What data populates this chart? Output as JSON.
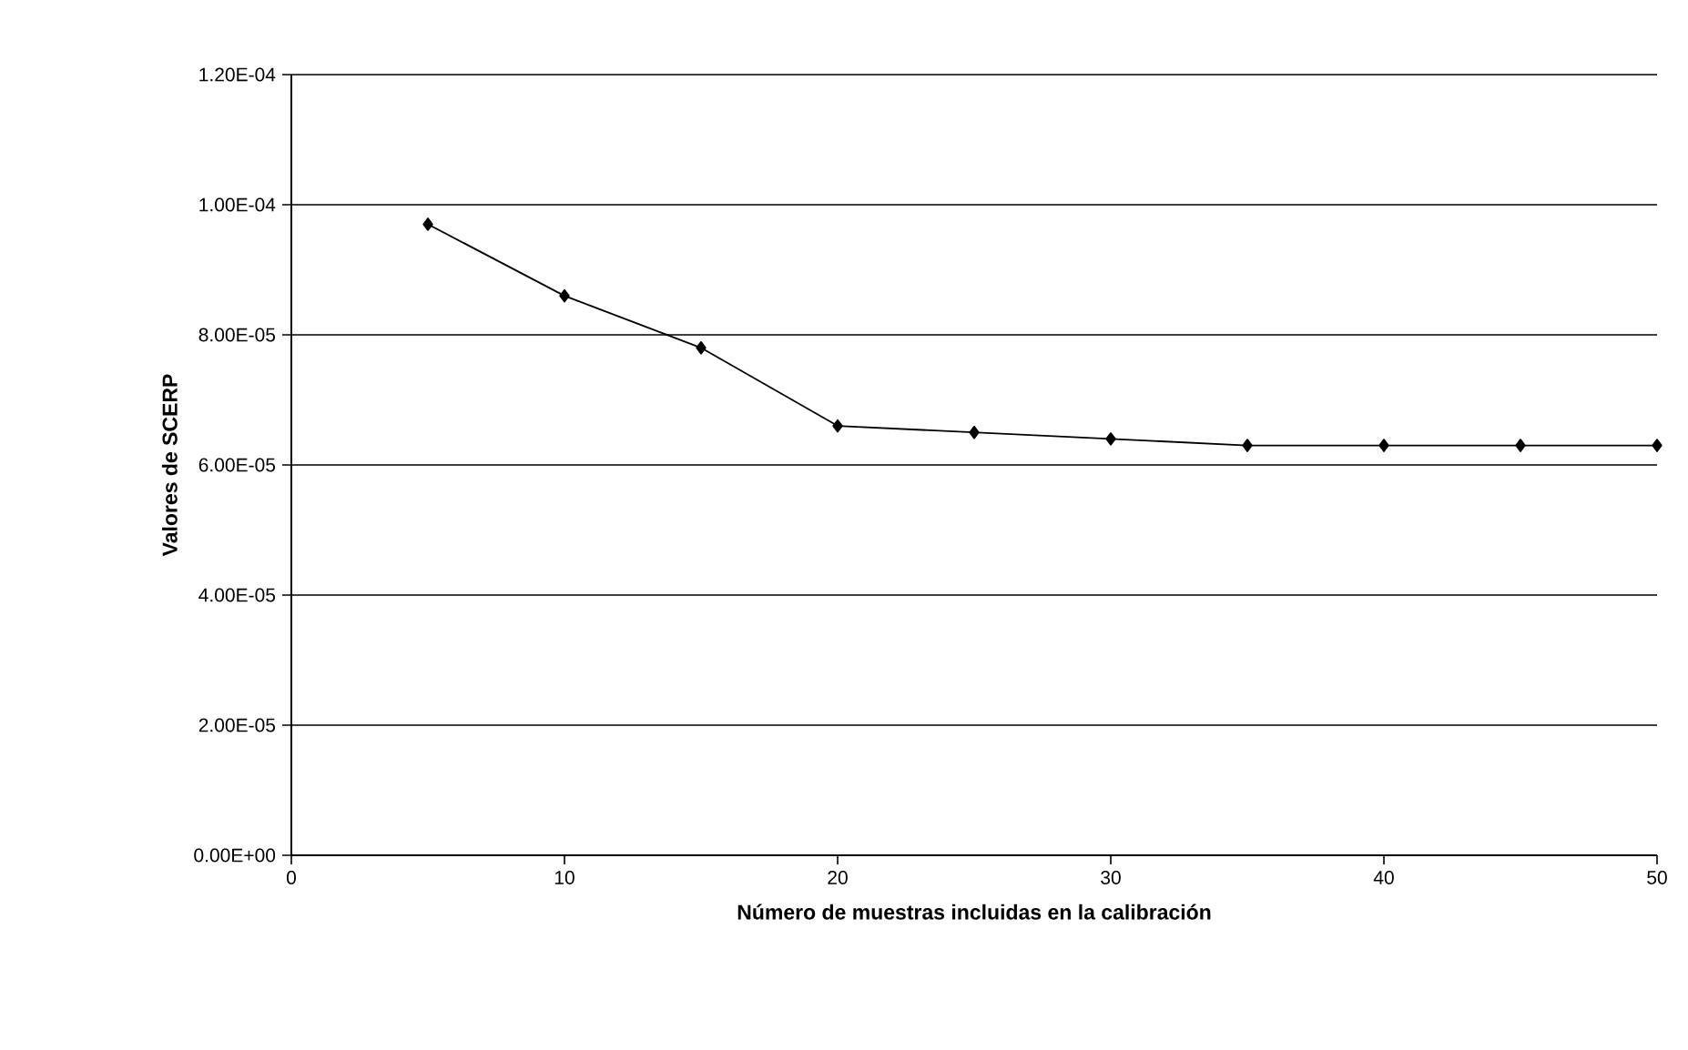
{
  "chart_data": {
    "type": "line",
    "xlabel": "Número de muestras incluidas en la calibración",
    "ylabel": "Valores de SCERP",
    "x": [
      5,
      10,
      15,
      20,
      25,
      30,
      35,
      40,
      45,
      50
    ],
    "series": [
      {
        "color": "#000000",
        "values": [
          9.7e-05,
          8.6e-05,
          7.8e-05,
          6.6e-05,
          6.5e-05,
          6.4e-05,
          6.3e-05,
          6.3e-05,
          6.3e-05,
          6.3e-05
        ]
      }
    ],
    "xlim": [
      0,
      50
    ],
    "xticks": [
      0,
      10,
      20,
      30,
      40,
      50
    ],
    "ylim": [
      0,
      0.00012
    ],
    "yticks": [
      {
        "value": 0,
        "label": "0.00E+00"
      },
      {
        "value": 2e-05,
        "label": "2.00E-05"
      },
      {
        "value": 4e-05,
        "label": "4.00E-05"
      },
      {
        "value": 6e-05,
        "label": "6.00E-05"
      },
      {
        "value": 8e-05,
        "label": "8.00E-05"
      },
      {
        "value": 0.0001,
        "label": "1.00E-04"
      },
      {
        "value": 0.00012,
        "label": "1.20E-04"
      }
    ],
    "grid": "y",
    "marker": "diamond",
    "line_style": "solid"
  }
}
